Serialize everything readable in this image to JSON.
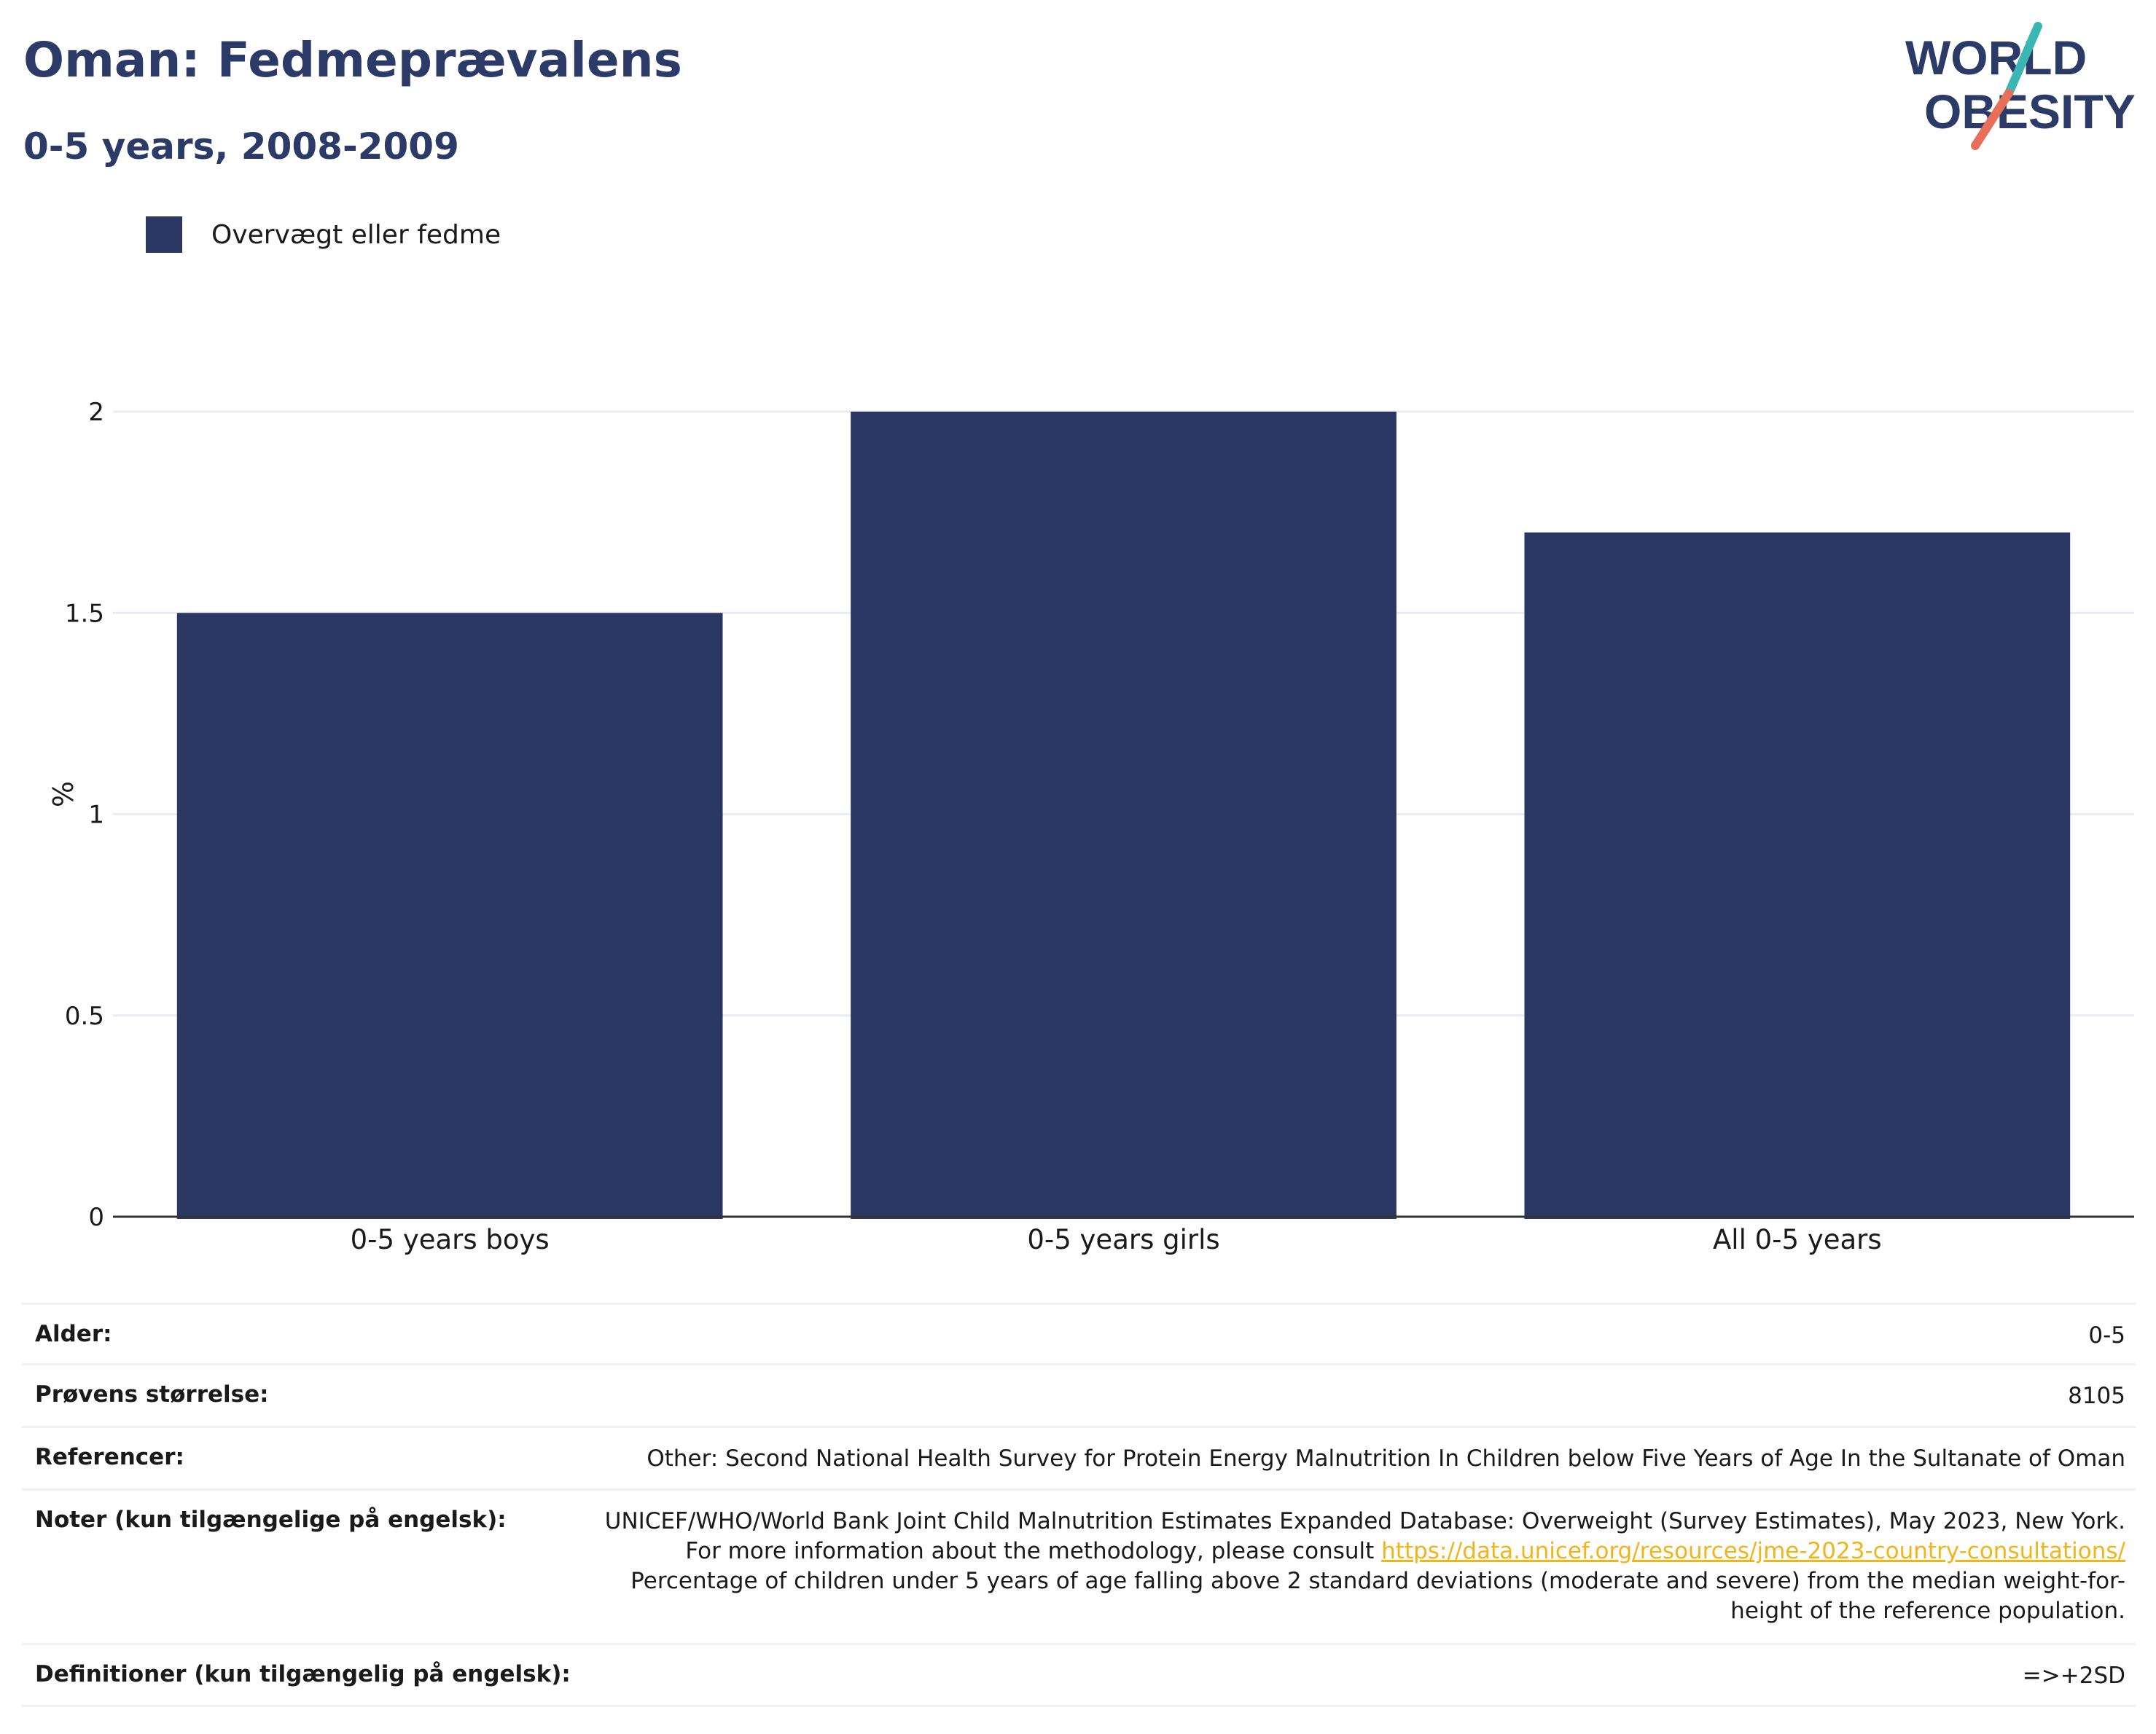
{
  "header": {
    "title": "Oman: Fedmeprævalens",
    "subtitle": "0-5 years, 2008-2009"
  },
  "logo": {
    "line1": "WORLD",
    "line2": "OBESITY",
    "slash_colors": [
      "#3ab7b3",
      "#e8705a"
    ],
    "text_color": "#2b3a67"
  },
  "legend": {
    "label": "Overvægt eller fedme",
    "color": "#2b3763"
  },
  "chart_data": {
    "type": "bar",
    "categories": [
      "0-5 years boys",
      "0-5 years girls",
      "All 0-5 years"
    ],
    "series": [
      {
        "name": "Overvægt eller fedme",
        "values": [
          1.5,
          2.0,
          1.7
        ],
        "color": "#2b3763"
      }
    ],
    "title": "Oman: Fedmeprævalens",
    "subtitle": "0-5 years, 2008-2009",
    "xlabel": "",
    "ylabel": "%",
    "ylim": [
      0,
      2
    ],
    "yticks": [
      0,
      0.5,
      1,
      1.5,
      2
    ],
    "ytick_labels": [
      "0",
      "0.5",
      "1",
      "1.5",
      "2"
    ],
    "grid": true,
    "legend_position": "top-left"
  },
  "info": {
    "age_label": "Alder:",
    "age_value": "0-5",
    "sample_label": "Prøvens størrelse:",
    "sample_value": "8105",
    "refs_label": "Referencer:",
    "refs_value": "Other: Second National Health Survey for Protein Energy Malnutrition In Children below Five Years of Age In the Sultanate of Oman",
    "notes_label": "Noter (kun tilgængelige på engelsk):",
    "notes_text_1": "UNICEF/WHO/World Bank Joint Child Malnutrition Estimates Expanded Database: Overweight (Survey Estimates), May 2023, New York. For more information about the methodology, please consult",
    "notes_link": "https://data.unicef.org/resources/jme-2023-country-consultations/",
    "notes_text_2": "Percentage of children under 5 years of age falling above 2 standard deviations (moderate and severe) from the median weight-for-height of the reference population.",
    "def_label": "Definitioner (kun tilgængelig på engelsk):",
    "def_value": "=>+2SD"
  }
}
